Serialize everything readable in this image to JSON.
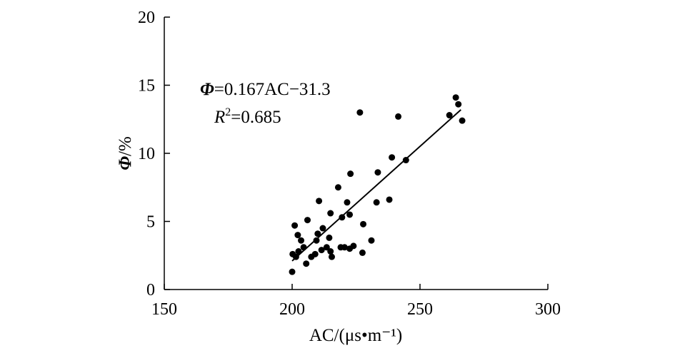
{
  "chart_data": {
    "type": "scatter",
    "xlabel": "AC/(μs•m⁻¹)",
    "ylabel": "Φ/%",
    "xlim": [
      150,
      300
    ],
    "ylim": [
      0,
      20
    ],
    "xticks": [
      "150",
      "200",
      "250",
      "300"
    ],
    "yticks": [
      "0",
      "5",
      "10",
      "15",
      "20"
    ],
    "grid": false,
    "equation": {
      "fit_text": "Φ=0.167AC−31.3",
      "r2_text": "R2=0.685",
      "slope": 0.167,
      "intercept": -31.3,
      "r2": 0.685
    },
    "fit_line": {
      "x": [
        200,
        266
      ],
      "y": [
        2.1,
        13.2
      ]
    },
    "points": [
      {
        "x": 200.0,
        "y": 1.3
      },
      {
        "x": 200.2,
        "y": 2.6
      },
      {
        "x": 201.5,
        "y": 2.4
      },
      {
        "x": 201.0,
        "y": 4.7
      },
      {
        "x": 202.2,
        "y": 4.0
      },
      {
        "x": 202.5,
        "y": 2.8
      },
      {
        "x": 203.5,
        "y": 3.6
      },
      {
        "x": 204.5,
        "y": 3.1
      },
      {
        "x": 205.5,
        "y": 1.9
      },
      {
        "x": 206.0,
        "y": 5.1
      },
      {
        "x": 207.5,
        "y": 2.4
      },
      {
        "x": 209.0,
        "y": 2.6
      },
      {
        "x": 209.5,
        "y": 3.6
      },
      {
        "x": 210.0,
        "y": 4.1
      },
      {
        "x": 210.5,
        "y": 6.5
      },
      {
        "x": 211.5,
        "y": 2.9
      },
      {
        "x": 212.0,
        "y": 4.5
      },
      {
        "x": 213.5,
        "y": 3.1
      },
      {
        "x": 214.5,
        "y": 3.8
      },
      {
        "x": 215.0,
        "y": 2.8
      },
      {
        "x": 215.5,
        "y": 2.4
      },
      {
        "x": 215.0,
        "y": 5.6
      },
      {
        "x": 218.0,
        "y": 7.5
      },
      {
        "x": 219.0,
        "y": 3.1
      },
      {
        "x": 219.5,
        "y": 5.3
      },
      {
        "x": 220.5,
        "y": 3.1
      },
      {
        "x": 221.5,
        "y": 6.4
      },
      {
        "x": 222.5,
        "y": 3.0
      },
      {
        "x": 222.5,
        "y": 5.5
      },
      {
        "x": 222.8,
        "y": 8.5
      },
      {
        "x": 224.0,
        "y": 3.2
      },
      {
        "x": 226.5,
        "y": 13.0
      },
      {
        "x": 227.5,
        "y": 2.7
      },
      {
        "x": 227.8,
        "y": 4.8
      },
      {
        "x": 231.0,
        "y": 3.6
      },
      {
        "x": 233.0,
        "y": 6.4
      },
      {
        "x": 233.5,
        "y": 8.6
      },
      {
        "x": 238.0,
        "y": 6.6
      },
      {
        "x": 239.0,
        "y": 9.7
      },
      {
        "x": 241.5,
        "y": 12.7
      },
      {
        "x": 244.5,
        "y": 9.5
      },
      {
        "x": 261.5,
        "y": 12.8
      },
      {
        "x": 264.0,
        "y": 14.1
      },
      {
        "x": 265.0,
        "y": 13.6
      },
      {
        "x": 266.5,
        "y": 12.4
      }
    ]
  }
}
